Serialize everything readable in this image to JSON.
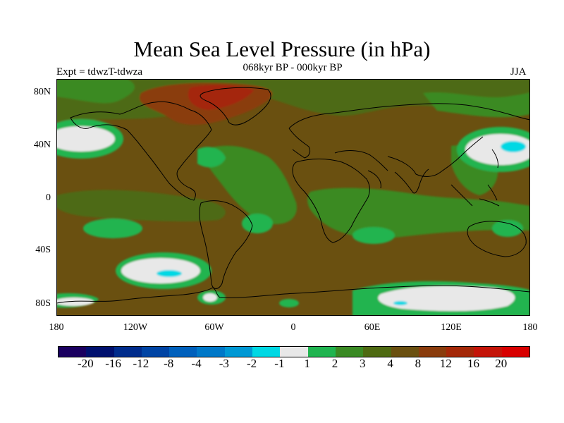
{
  "title": "Mean Sea Level Pressure (in hPa)",
  "subtitle": "068kyr BP - 000kyr BP",
  "experiment_label": "Expt = tdwzT-tdwza",
  "season": "JJA",
  "map": {
    "projection": "cylindrical equidistant",
    "lon_range": [
      -180,
      180
    ],
    "lat_range": [
      -90,
      90
    ],
    "lat_ticks": [
      "80N",
      "40N",
      "0",
      "40S",
      "80S"
    ],
    "lon_ticks": [
      "180",
      "120W",
      "60W",
      "0",
      "60E",
      "120E",
      "180"
    ],
    "background_category": "4 to 8",
    "features": [
      {
        "name": "greenland-north-atlantic-high",
        "category": "8 to 12"
      },
      {
        "name": "north-pacific-west-negative",
        "category": "-2 to 1"
      },
      {
        "name": "north-pacific-east-negative",
        "category": "-2 to 1"
      },
      {
        "name": "southeast-pacific-negative",
        "category": "-3 to 1"
      },
      {
        "name": "antarctic-margin-negative",
        "category": "-2 to 1"
      },
      {
        "name": "tropical-green-bands",
        "category": "1 to 3"
      }
    ]
  },
  "colorbar": {
    "colors": [
      "#1a0060",
      "#00106e",
      "#002c8c",
      "#0044a4",
      "#0060bc",
      "#0078c8",
      "#0098d4",
      "#00d8e4",
      "#e8e8e8",
      "#20b450",
      "#3a8a24",
      "#4e6a12",
      "#6a5010",
      "#8a3c0c",
      "#a42808",
      "#c41408",
      "#d80000"
    ],
    "labels": [
      "-20",
      "-16",
      "-12",
      "-8",
      "-4",
      "-3",
      "-2",
      "-1",
      "1",
      "2",
      "3",
      "4",
      "8",
      "12",
      "16",
      "20"
    ]
  }
}
